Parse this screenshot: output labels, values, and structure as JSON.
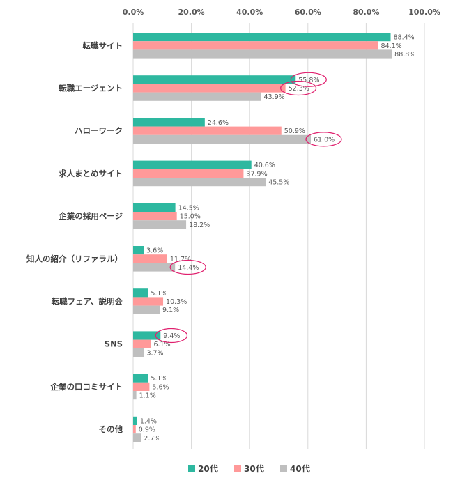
{
  "chart_data": {
    "type": "bar",
    "orientation": "horizontal",
    "title": "",
    "xlabel": "",
    "ylabel": "",
    "xlim": [
      0,
      100
    ],
    "x_ticks": [
      "0.0%",
      "20.0%",
      "40.0%",
      "60.0%",
      "80.0%",
      "100.0%"
    ],
    "grid": true,
    "legend_position": "bottom",
    "categories": [
      "転職サイト",
      "転職エージェント",
      "ハローワーク",
      "求人まとめサイト",
      "企業の採用ページ",
      "知人の紹介（リファラル）",
      "転職フェア、説明会",
      "SNS",
      "企業の口コミサイト",
      "その他"
    ],
    "series": [
      {
        "name": "20代",
        "color": "#2eb8a0",
        "values": [
          88.4,
          55.8,
          24.6,
          40.6,
          14.5,
          3.6,
          5.1,
          9.4,
          5.1,
          1.4
        ],
        "labels": [
          "88.4%",
          "55.8%",
          "24.6%",
          "40.6%",
          "14.5%",
          "3.6%",
          "5.1%",
          "9.4%",
          "5.1%",
          "1.4%"
        ]
      },
      {
        "name": "30代",
        "color": "#ff9999",
        "values": [
          84.1,
          52.3,
          50.9,
          37.9,
          15.0,
          11.7,
          10.3,
          6.1,
          5.6,
          0.9
        ],
        "labels": [
          "84.1%",
          "52.3%",
          "50.9%",
          "37.9%",
          "15.0%",
          "11.7%",
          "10.3%",
          "6.1%",
          "5.6%",
          "0.9%"
        ]
      },
      {
        "name": "40代",
        "color": "#bfbfbf",
        "values": [
          88.8,
          43.9,
          61.0,
          45.5,
          18.2,
          14.4,
          9.1,
          3.7,
          1.1,
          2.7
        ],
        "labels": [
          "88.8%",
          "43.9%",
          "61.0%",
          "45.5%",
          "18.2%",
          "14.4%",
          "9.1%",
          "3.7%",
          "1.1%",
          "2.7%"
        ]
      }
    ],
    "highlighted": [
      {
        "category_index": 1,
        "series_index": 0,
        "color": "#e0206e"
      },
      {
        "category_index": 1,
        "series_index": 1,
        "color": "#e0206e"
      },
      {
        "category_index": 2,
        "series_index": 2,
        "color": "#e0206e"
      },
      {
        "category_index": 5,
        "series_index": 2,
        "color": "#e0206e"
      },
      {
        "category_index": 7,
        "series_index": 0,
        "color": "#e0206e"
      }
    ]
  }
}
